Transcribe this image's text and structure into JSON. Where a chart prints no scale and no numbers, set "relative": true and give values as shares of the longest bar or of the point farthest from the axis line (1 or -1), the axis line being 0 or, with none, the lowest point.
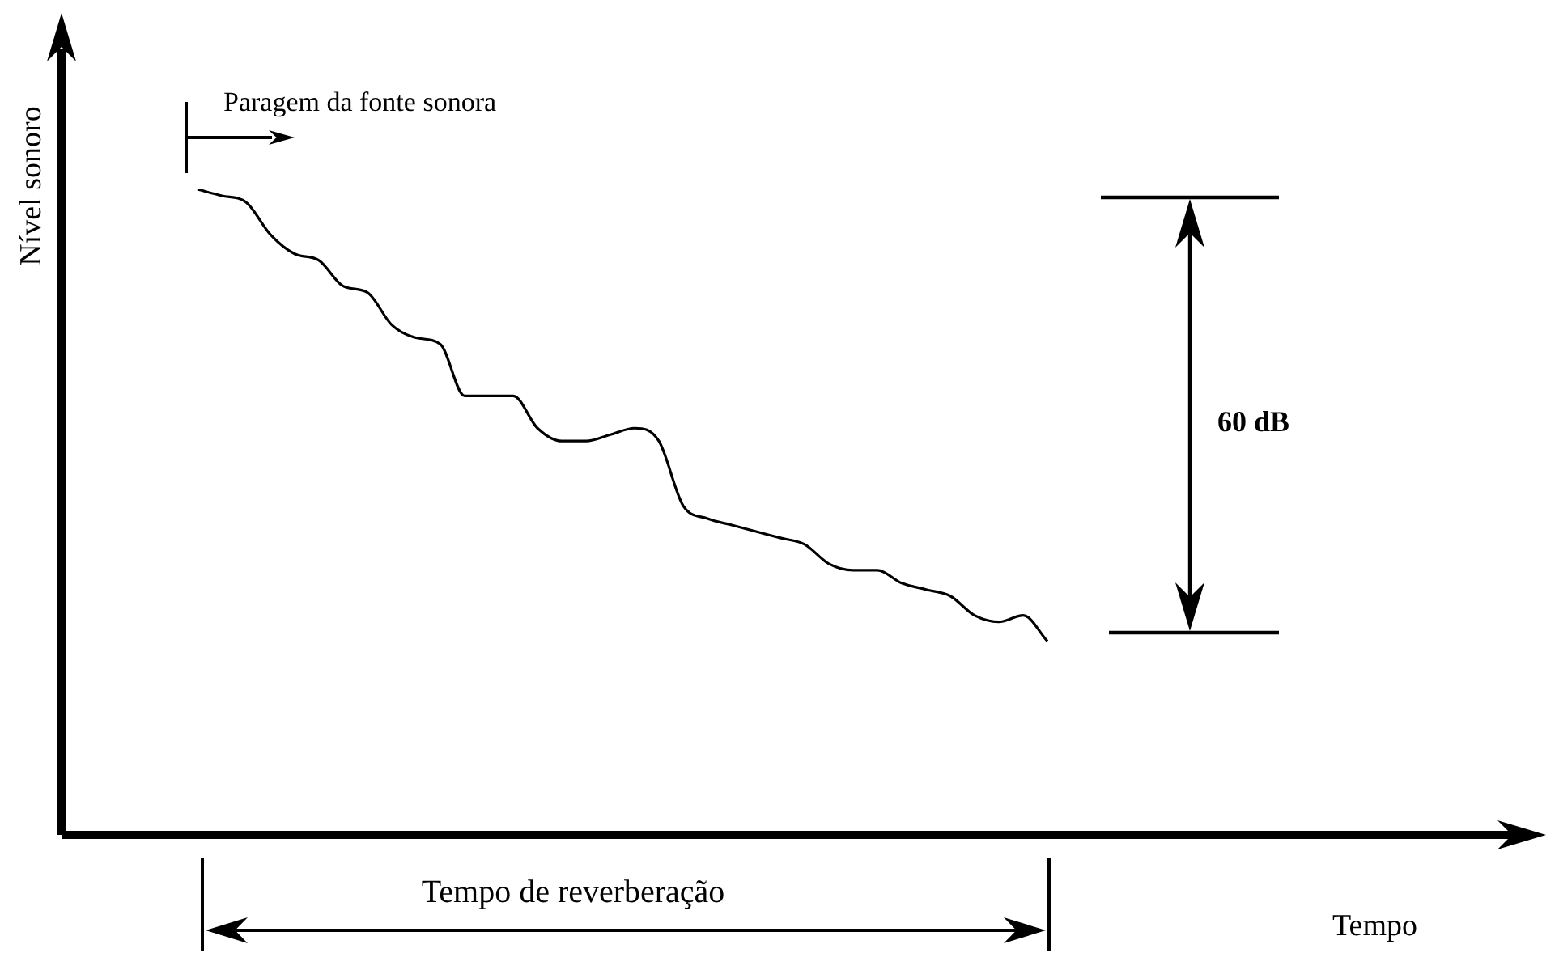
{
  "chart_data": {
    "type": "line",
    "relative": true,
    "ylabel": "Nível sonoro",
    "color": "#000000",
    "marker": "none",
    "categories": [
      null,
      null,
      null,
      null,
      null,
      null,
      null,
      null,
      null,
      null,
      null,
      null,
      null,
      null,
      null,
      null,
      null,
      null,
      null,
      null,
      null,
      null,
      null,
      null,
      null,
      null,
      null,
      null,
      null,
      null,
      null,
      null,
      null,
      null,
      null,
      null
    ],
    "values": [
      1,
      0.99,
      0.98,
      0.93,
      0.9,
      0.89,
      0.85,
      0.84,
      0.79,
      0.77,
      0.76,
      0.68,
      0.68,
      0.68,
      0.63,
      0.61,
      0.61,
      0.62,
      0.63,
      0.61,
      0.51,
      0.49,
      0.48,
      0.47,
      0.46,
      0.45,
      0.42,
      0.41,
      0.41,
      0.39,
      0.38,
      0.37,
      0.34,
      0.33,
      0.34,
      0.3
    ],
    "annotations": [
      "Paragem da fonte sonora",
      "60 dB",
      "Tempo de reverberação",
      "Tempo"
    ]
  }
}
